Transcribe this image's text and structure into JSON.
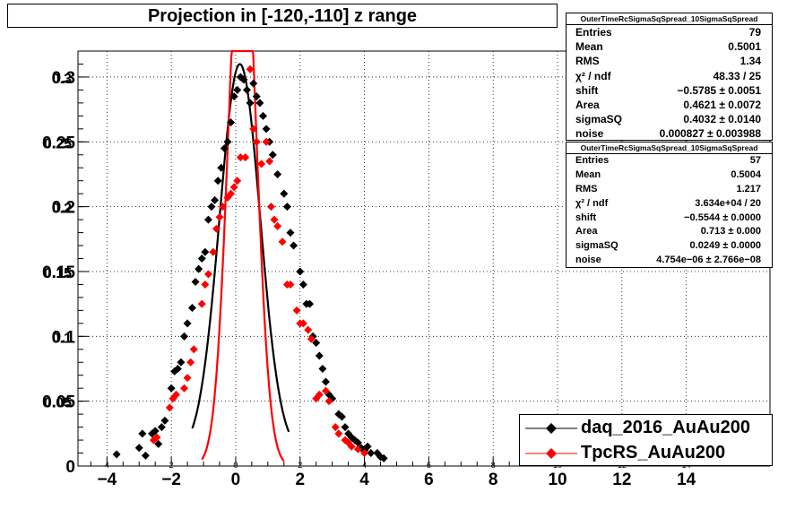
{
  "title": "Projection in [-120,-110] z range",
  "chart_data": {
    "type": "scatter",
    "title": "Projection in [-120,-110] z range",
    "xlabel": "",
    "ylabel": "",
    "xlim": [
      -4.9,
      16.6
    ],
    "ylim": [
      0,
      0.32
    ],
    "grid": true,
    "x_ticks": [
      -4,
      -2,
      0,
      2,
      4,
      6,
      8,
      10,
      12,
      14
    ],
    "x_ticks_small": [
      -4,
      -2,
      0,
      2,
      4,
      6,
      8,
      10,
      12,
      14
    ],
    "x_tick_labels": [
      "−4",
      "−2",
      "0",
      "2",
      "4",
      "6",
      "8",
      "10",
      "12",
      "14"
    ],
    "x_tick_labels_small": [
      "4",
      "2",
      "0",
      "2",
      "4",
      "6",
      "8",
      "10",
      "12",
      "14"
    ],
    "y_ticks": [
      0,
      0.05,
      0.1,
      0.15,
      0.2,
      0.25,
      0.3
    ],
    "y_tick_labels": [
      "0",
      "0.05",
      "0.1",
      "0.15",
      "0.2",
      "0.25",
      "0.3"
    ],
    "y_tick_labels_overlay": [
      "",
      "0.05",
      "0.1",
      "0.15",
      "0.2",
      "0.25",
      "0.3"
    ],
    "series": [
      {
        "name": "daq_2016_AuAu200",
        "color": "#000000",
        "points": [
          [
            -3.7,
            0.009
          ],
          [
            -3.0,
            0.014
          ],
          [
            -2.9,
            0.025
          ],
          [
            -2.8,
            0.008
          ],
          [
            -2.6,
            0.025
          ],
          [
            -2.5,
            0.027
          ],
          [
            -2.4,
            0.017
          ],
          [
            -2.3,
            0.03
          ],
          [
            -2.2,
            0.035
          ],
          [
            -2.0,
            0.06
          ],
          [
            -1.9,
            0.073
          ],
          [
            -1.8,
            0.075
          ],
          [
            -1.7,
            0.08
          ],
          [
            -1.6,
            0.1
          ],
          [
            -1.5,
            0.11
          ],
          [
            -1.35,
            0.122
          ],
          [
            -1.25,
            0.142
          ],
          [
            -1.15,
            0.152
          ],
          [
            -1.05,
            0.16
          ],
          [
            -0.95,
            0.165
          ],
          [
            -0.85,
            0.19
          ],
          [
            -0.75,
            0.2
          ],
          [
            -0.65,
            0.205
          ],
          [
            -0.55,
            0.22
          ],
          [
            -0.45,
            0.23
          ],
          [
            -0.35,
            0.245
          ],
          [
            -0.25,
            0.25
          ],
          [
            -0.15,
            0.265
          ],
          [
            -0.05,
            0.285
          ],
          [
            0.05,
            0.29
          ],
          [
            0.15,
            0.3
          ],
          [
            0.25,
            0.298
          ],
          [
            0.35,
            0.29
          ],
          [
            0.45,
            0.28
          ],
          [
            0.55,
            0.295
          ],
          [
            0.65,
            0.285
          ],
          [
            0.75,
            0.28
          ],
          [
            0.85,
            0.27
          ],
          [
            0.95,
            0.26
          ],
          [
            1.05,
            0.25
          ],
          [
            1.15,
            0.24
          ],
          [
            1.3,
            0.225
          ],
          [
            1.5,
            0.21
          ],
          [
            1.6,
            0.2
          ],
          [
            1.7,
            0.18
          ],
          [
            1.8,
            0.17
          ],
          [
            2.0,
            0.15
          ],
          [
            2.1,
            0.14
          ],
          [
            2.2,
            0.125
          ],
          [
            2.3,
            0.125
          ],
          [
            2.4,
            0.1
          ],
          [
            2.5,
            0.095
          ],
          [
            2.6,
            0.085
          ],
          [
            2.7,
            0.075
          ],
          [
            2.8,
            0.065
          ],
          [
            2.9,
            0.055
          ],
          [
            3.0,
            0.052
          ],
          [
            3.2,
            0.04
          ],
          [
            3.3,
            0.038
          ],
          [
            3.4,
            0.03
          ],
          [
            3.5,
            0.025
          ],
          [
            3.6,
            0.022
          ],
          [
            3.7,
            0.02
          ],
          [
            3.8,
            0.018
          ],
          [
            3.9,
            0.014
          ],
          [
            4.0,
            0.012
          ],
          [
            4.1,
            0.015
          ],
          [
            4.2,
            0.01
          ],
          [
            4.4,
            0.01
          ],
          [
            4.5,
            0.007
          ],
          [
            4.6,
            0.006
          ]
        ]
      },
      {
        "name": "TpcRS_AuAu200",
        "color": "#ff0000",
        "points": [
          [
            -2.55,
            0.02
          ],
          [
            -2.45,
            0.022
          ],
          [
            -2.05,
            0.045
          ],
          [
            -1.95,
            0.052
          ],
          [
            -1.85,
            0.055
          ],
          [
            -1.6,
            0.06
          ],
          [
            -1.5,
            0.068
          ],
          [
            -1.4,
            0.08
          ],
          [
            -1.3,
            0.09
          ],
          [
            -1.05,
            0.125
          ],
          [
            -0.95,
            0.14
          ],
          [
            -0.85,
            0.148
          ],
          [
            -0.7,
            0.165
          ],
          [
            -0.6,
            0.183
          ],
          [
            -0.5,
            0.192
          ],
          [
            -0.4,
            0.2
          ],
          [
            -0.25,
            0.207
          ],
          [
            -0.15,
            0.21
          ],
          [
            -0.05,
            0.215
          ],
          [
            0.05,
            0.22
          ],
          [
            0.15,
            0.238
          ],
          [
            0.3,
            0.238
          ],
          [
            0.45,
            0.306
          ],
          [
            0.55,
            0.26
          ],
          [
            0.65,
            0.25
          ],
          [
            0.8,
            0.233
          ],
          [
            0.95,
            0.25
          ],
          [
            1.05,
            0.235
          ],
          [
            1.1,
            0.2
          ],
          [
            1.2,
            0.19
          ],
          [
            1.3,
            0.185
          ],
          [
            1.45,
            0.173
          ],
          [
            1.6,
            0.14
          ],
          [
            1.7,
            0.14
          ],
          [
            1.9,
            0.12
          ],
          [
            2.0,
            0.11
          ],
          [
            2.1,
            0.11
          ],
          [
            2.25,
            0.105
          ],
          [
            2.35,
            0.098
          ],
          [
            2.5,
            0.052
          ],
          [
            2.6,
            0.055
          ],
          [
            2.8,
            0.058
          ],
          [
            2.9,
            0.05
          ],
          [
            3.1,
            0.03
          ],
          [
            3.2,
            0.025
          ],
          [
            3.4,
            0.02
          ],
          [
            3.5,
            0.018
          ],
          [
            3.6,
            0.015
          ],
          [
            3.8,
            0.013
          ],
          [
            4.0,
            0.01
          ]
        ]
      }
    ],
    "fit_curves": [
      {
        "color": "#000000",
        "x_range": [
          -1.35,
          1.65
        ],
        "shift": -0.5785,
        "area": 0.4621,
        "sigma_sq": 0.4032,
        "noise": 0.000827
      },
      {
        "color": "#ff0000",
        "x_range": [
          -1.05,
          1.5
        ],
        "shift": -0.5544,
        "area": 0.713,
        "sigma_sq": 0.0249,
        "noise": 4.754e-06
      }
    ]
  },
  "stats_boxes": [
    {
      "header": "OuterTimeRcSigmaSqSpread_10SigmaSqSpread",
      "rows": [
        {
          "label": "Entries",
          "value": "79"
        },
        {
          "label": "Mean",
          "value": "0.5001"
        },
        {
          "label": "RMS",
          "value": "1.34"
        },
        {
          "label": "χ² / ndf",
          "value": "48.33 / 25"
        },
        {
          "label": "shift",
          "value": "−0.5785 ± 0.0051"
        },
        {
          "label": "Area",
          "value": "0.4621 ± 0.0072"
        },
        {
          "label": "sigmaSQ",
          "value": "0.4032 ± 0.0140"
        },
        {
          "label": "noise",
          "value": "0.000827 ± 0.003988"
        }
      ]
    },
    {
      "header": "OuterTimeRcSigmaSqSpread_10SigmaSqSpread",
      "rows": [
        {
          "label": "Entries",
          "value": "57"
        },
        {
          "label": "Mean",
          "value": "0.5004"
        },
        {
          "label": "RMS",
          "value": "1.217"
        },
        {
          "label": "χ² / ndf",
          "value": "3.634e+04 / 20"
        },
        {
          "label": "shift",
          "value": "−0.5544 ± 0.0000"
        },
        {
          "label": "Area",
          "value": "0.713 ± 0.000"
        },
        {
          "label": "sigmaSQ",
          "value": "0.0249 ± 0.0000"
        },
        {
          "label": "noise",
          "value": "4.754e−06 ± 2.766e−08"
        }
      ]
    }
  ],
  "legend": {
    "entries": [
      {
        "label": "daq_2016_AuAu200",
        "color": "#000000"
      },
      {
        "label": "TpcRS_AuAu200",
        "color": "#ff0000"
      }
    ]
  }
}
